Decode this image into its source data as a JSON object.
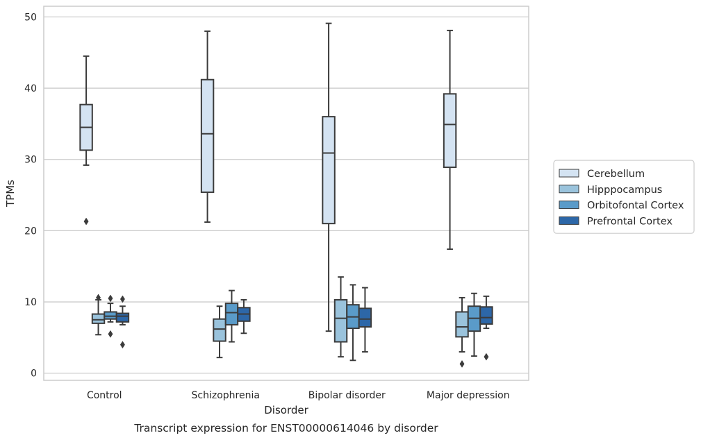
{
  "chart_data": {
    "type": "boxplot",
    "caption": "Transcript expression for ENST00000614046 by disorder",
    "xlabel": "Disorder",
    "ylabel": "TPMs",
    "ylim": [
      -1,
      51.5
    ],
    "yticks": [
      0,
      10,
      20,
      30,
      40,
      50
    ],
    "grid": "horizontal",
    "legend_position": "right",
    "categories": [
      "Control",
      "Schizophrenia",
      "Bipolar disorder",
      "Major depression"
    ],
    "series": [
      {
        "name": "Cerebellum",
        "color": "#d4e3f2",
        "boxes": [
          {
            "whislo": 29.2,
            "q1": 31.3,
            "med": 34.5,
            "q3": 37.7,
            "whishi": 44.5,
            "fliers": [
              21.3
            ]
          },
          {
            "whislo": 21.2,
            "q1": 25.4,
            "med": 33.6,
            "q3": 41.2,
            "whishi": 48.0,
            "fliers": []
          },
          {
            "whislo": 5.9,
            "q1": 21.0,
            "med": 30.9,
            "q3": 36.0,
            "whishi": 49.1,
            "fliers": []
          },
          {
            "whislo": 17.4,
            "q1": 28.9,
            "med": 34.9,
            "q3": 39.2,
            "whishi": 48.1,
            "fliers": []
          }
        ]
      },
      {
        "name": "Hipppocampus",
        "color": "#9ac3dc",
        "boxes": [
          {
            "whislo": 5.4,
            "q1": 7.0,
            "med": 7.5,
            "q3": 8.3,
            "whishi": 10.3,
            "fliers": [
              10.6
            ]
          },
          {
            "whislo": 2.2,
            "q1": 4.5,
            "med": 6.2,
            "q3": 7.6,
            "whishi": 9.4,
            "fliers": []
          },
          {
            "whislo": 2.3,
            "q1": 4.4,
            "med": 7.7,
            "q3": 10.3,
            "whishi": 13.5,
            "fliers": []
          },
          {
            "whislo": 3.0,
            "q1": 5.1,
            "med": 6.5,
            "q3": 8.6,
            "whishi": 10.6,
            "fliers": [
              1.3
            ]
          }
        ]
      },
      {
        "name": "Orbitofontal Cortex",
        "color": "#5a9bc9",
        "boxes": [
          {
            "whislo": 7.2,
            "q1": 7.6,
            "med": 8.0,
            "q3": 8.6,
            "whishi": 9.8,
            "fliers": [
              10.5,
              5.5
            ]
          },
          {
            "whislo": 4.4,
            "q1": 6.8,
            "med": 8.5,
            "q3": 9.8,
            "whishi": 11.6,
            "fliers": []
          },
          {
            "whislo": 1.8,
            "q1": 6.3,
            "med": 7.9,
            "q3": 9.6,
            "whishi": 12.4,
            "fliers": []
          },
          {
            "whislo": 2.4,
            "q1": 5.9,
            "med": 7.7,
            "q3": 9.4,
            "whishi": 11.2,
            "fliers": []
          }
        ]
      },
      {
        "name": "Prefrontal Cortex",
        "color": "#2d67a8",
        "boxes": [
          {
            "whislo": 6.8,
            "q1": 7.2,
            "med": 8.0,
            "q3": 8.4,
            "whishi": 9.4,
            "fliers": [
              10.4,
              4.0
            ]
          },
          {
            "whislo": 5.6,
            "q1": 7.3,
            "med": 8.3,
            "q3": 9.2,
            "whishi": 10.3,
            "fliers": []
          },
          {
            "whislo": 3.0,
            "q1": 6.5,
            "med": 7.6,
            "q3": 9.1,
            "whishi": 12.0,
            "fliers": []
          },
          {
            "whislo": 6.3,
            "q1": 6.9,
            "med": 7.8,
            "q3": 9.3,
            "whishi": 10.8,
            "fliers": [
              2.3
            ]
          }
        ]
      }
    ]
  }
}
